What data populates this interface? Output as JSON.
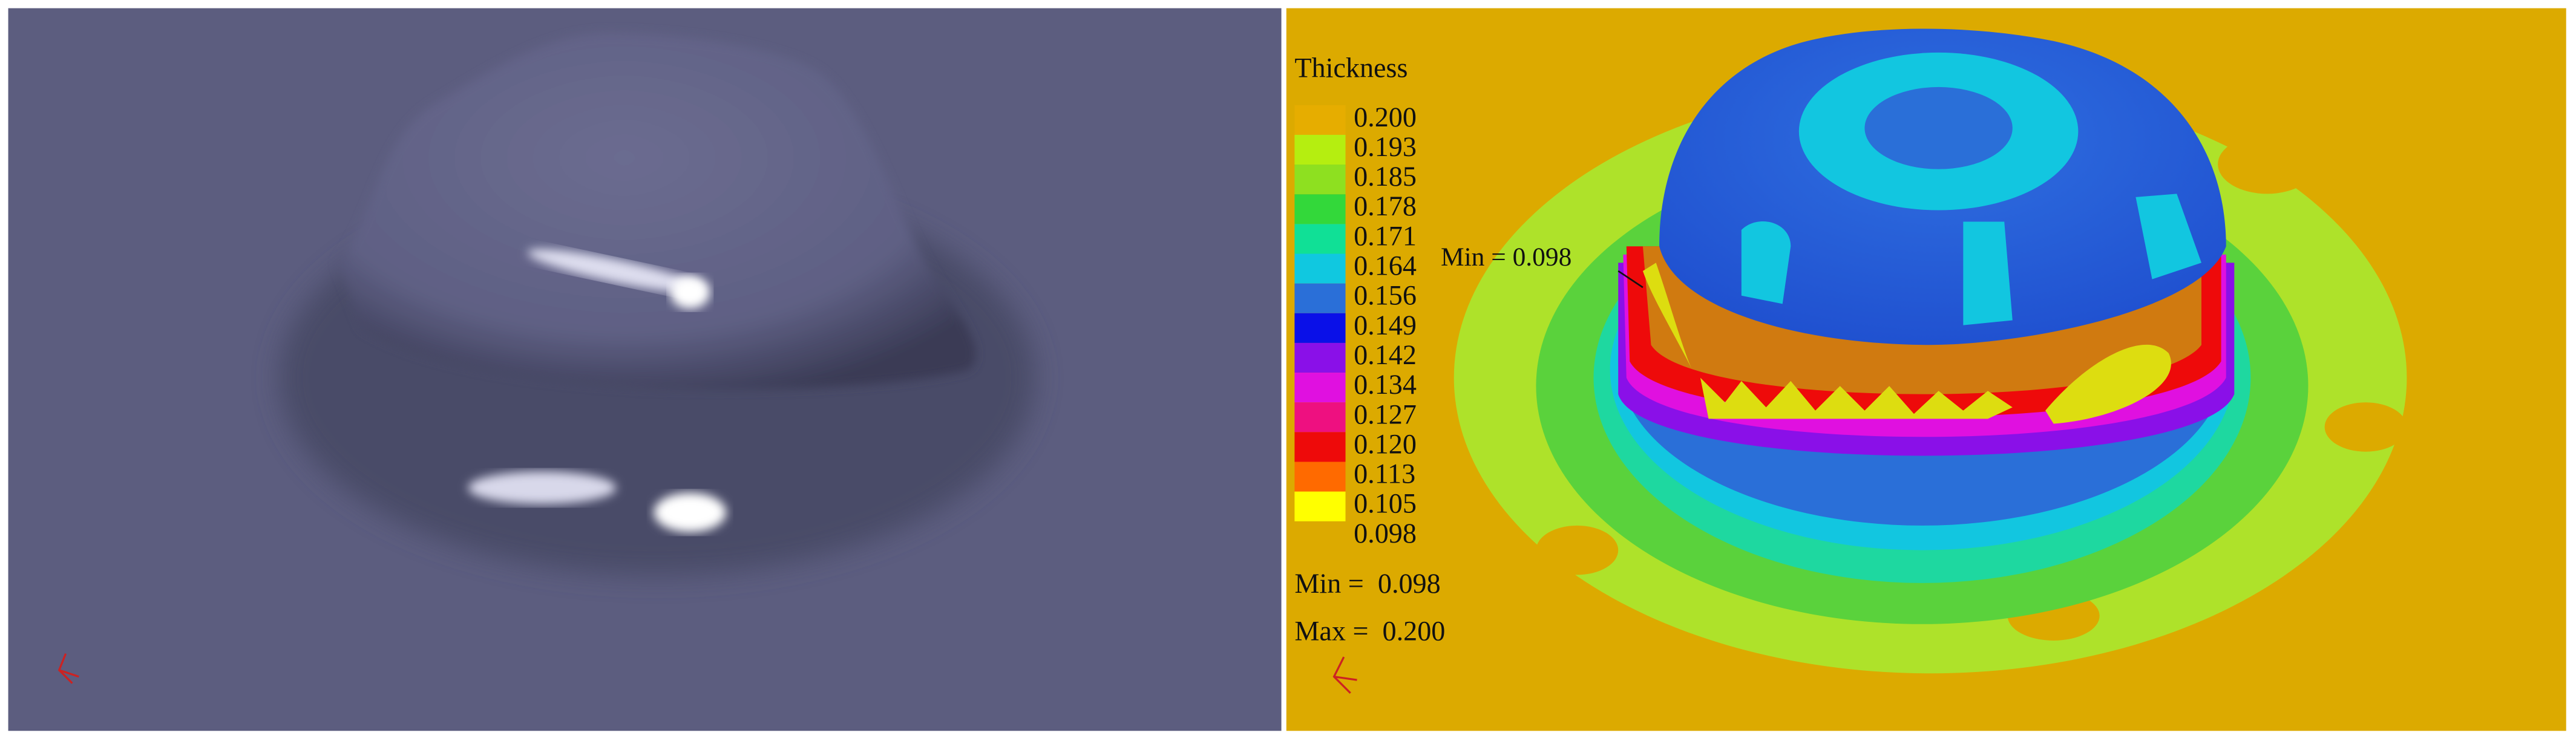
{
  "legend": {
    "title": "Thickness",
    "levels": [
      "0.200",
      "0.193",
      "0.185",
      "0.178",
      "0.171",
      "0.164",
      "0.156",
      "0.149",
      "0.142",
      "0.134",
      "0.127",
      "0.120",
      "0.113",
      "0.105",
      "0.098"
    ],
    "colors": [
      "#e6ad00",
      "#b5ee10",
      "#8ee020",
      "#33d83a",
      "#10e096",
      "#10c8e0",
      "#2a6fd8",
      "#0a10e8",
      "#8a10e8",
      "#e010e0",
      "#ee1080",
      "#ee0a0a",
      "#ff6a00",
      "#ffff00"
    ]
  },
  "min_annotation": "Min = 0.098",
  "summary": {
    "min": "Min =  0.098",
    "max": "Max =  0.200"
  }
}
